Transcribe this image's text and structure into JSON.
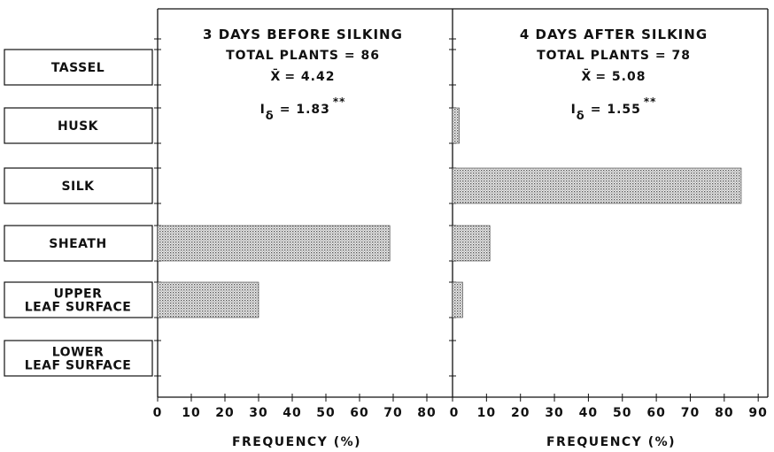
{
  "chart_data": {
    "type": "bar",
    "orientation": "horizontal",
    "categories": [
      [
        "TASSEL"
      ],
      [
        "HUSK"
      ],
      [
        "SILK"
      ],
      [
        "SHEATH"
      ],
      [
        "UPPER",
        "LEAF SURFACE"
      ],
      [
        "LOWER",
        "LEAF SURFACE"
      ]
    ],
    "panels": [
      {
        "annotations": {
          "line1": "3 DAYS BEFORE SILKING",
          "line2": "TOTAL PLANTS = 86",
          "line3_symbol": "X̄",
          "line3_value": "= 4.42",
          "line4_symbol": "I",
          "line4_sub": "δ",
          "line4_value": "= 1.83",
          "line4_sup": "**"
        },
        "values": [
          0,
          0,
          0,
          69,
          30,
          0
        ],
        "xlim": [
          0,
          80
        ],
        "xticks": [
          "0",
          "10",
          "20",
          "30",
          "40",
          "50",
          "60",
          "70",
          "80"
        ],
        "xlabel": "FREQUENCY (%)"
      },
      {
        "annotations": {
          "line1": "4 DAYS AFTER SILKING",
          "line2": "TOTAL PLANTS = 78",
          "line3_symbol": "X̄",
          "line3_value": "= 5.08",
          "line4_symbol": "I",
          "line4_sub": "δ",
          "line4_value": "= 1.55",
          "line4_sup": "**"
        },
        "values": [
          0,
          2,
          85,
          11,
          3,
          0
        ],
        "xlim": [
          0,
          90
        ],
        "xticks": [
          "0",
          "10",
          "20",
          "30",
          "40",
          "50",
          "60",
          "70",
          "80",
          "90"
        ],
        "xlabel": "FREQUENCY (%)"
      }
    ]
  }
}
